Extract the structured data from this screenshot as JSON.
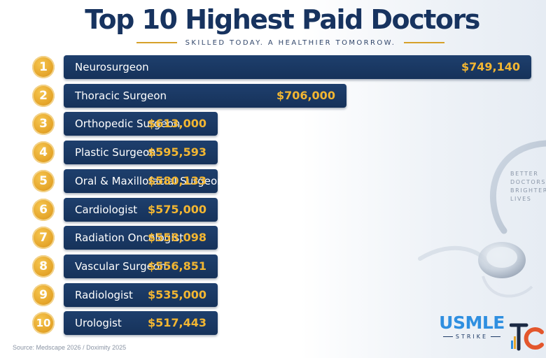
{
  "header": {
    "title": "Top 10 Highest Paid Doctors",
    "subtitle": "SKILLED TODAY. A HEALTHIER TOMORROW."
  },
  "side_text": "BETTER\nDOCTORS\nBRIGHTER\nLIVES",
  "footer": {
    "source": "Source: Medscape 2026 / Doximity 2025"
  },
  "logo": {
    "main": "USMLE",
    "sub": "STRIKE",
    "mark": "TC"
  },
  "colors": {
    "bar": "#1a386a",
    "value": "#f2b632",
    "badge": "#e5a52a",
    "title": "#17335f"
  },
  "chart_data": {
    "type": "bar",
    "orientation": "horizontal",
    "title": "Top 10 Highest Paid Doctors",
    "categories": [
      "Neurosurgeon",
      "Thoracic Surgeon",
      "Orthopedic Surgeon",
      "Plastic Surgeon",
      "Oral & Maxillofacial Surgeon",
      "Cardiologist",
      "Radiation Oncologist",
      "Vascular Surgeon",
      "Radiologist",
      "Urologist"
    ],
    "values": [
      749140,
      706000,
      613000,
      595593,
      580133,
      575000,
      558098,
      556851,
      535000,
      517443
    ],
    "value_labels": [
      "$749,140",
      "$706,000",
      "$613,000",
      "$595,593",
      "$580,133",
      "$575,000",
      "$558,098",
      "$556,851",
      "$535,000",
      "$517,443"
    ],
    "ranks": [
      "1",
      "2",
      "3",
      "4",
      "5",
      "6",
      "7",
      "8",
      "9",
      "10"
    ],
    "grid": false,
    "legend": "none"
  }
}
